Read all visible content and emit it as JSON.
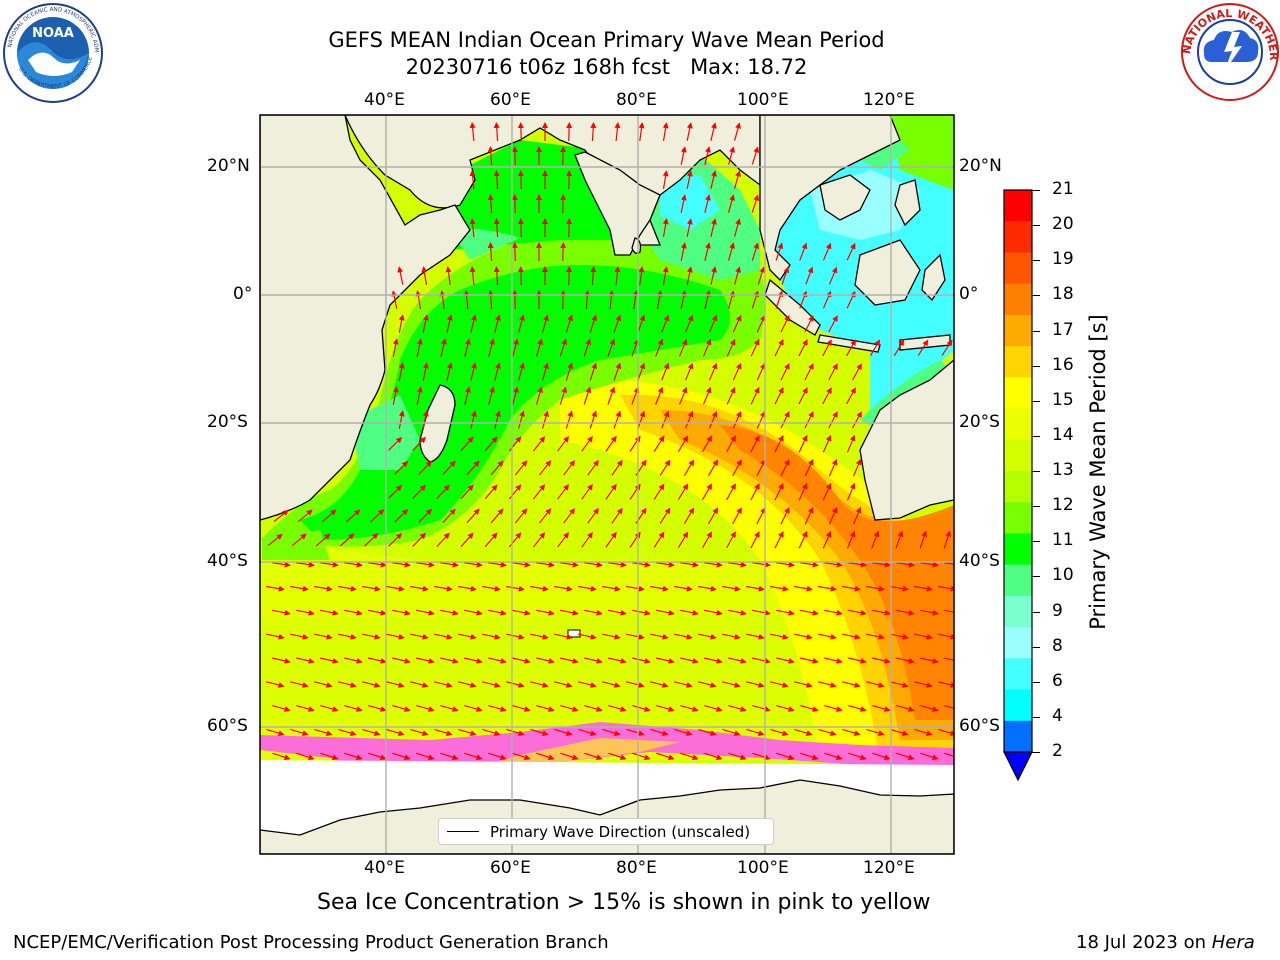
{
  "title": {
    "line1": "GEFS MEAN Indian Ocean Primary Wave Mean Period",
    "line2": "20230716 t06z 168h fcst   Max: 18.72"
  },
  "map": {
    "lon_ticks_top": [
      "40°E",
      "60°E",
      "80°E",
      "100°E",
      "120°E"
    ],
    "lon_ticks_bottom": [
      "40°E",
      "60°E",
      "80°E",
      "100°E",
      "120°E"
    ],
    "lat_ticks_left": [
      "20°N",
      "0°",
      "20°S",
      "40°S",
      "60°S"
    ],
    "lat_ticks_right": [
      "20°N",
      "0°",
      "20°S",
      "40°S",
      "60°S"
    ],
    "lon_range": [
      20,
      130
    ],
    "lat_range": [
      -75,
      28
    ],
    "grid": true,
    "land_color": "#efefdc",
    "arrow_color": "#ff0000",
    "no_data_color": "#ffffff"
  },
  "legend": {
    "label": "Primary Wave Direction (unscaled)",
    "location": "lower-center"
  },
  "colorbar": {
    "label": "Primary Wave Mean Period [s]",
    "ticks": [
      "21",
      "20",
      "19",
      "18",
      "17",
      "16",
      "15",
      "14",
      "13",
      "12",
      "11",
      "10",
      "9",
      "8",
      "6",
      "4",
      "2"
    ],
    "colors_top_to_bottom": [
      "#ff0000",
      "#ff2a00",
      "#ff5500",
      "#ff7f00",
      "#ffaa00",
      "#ffd400",
      "#ffff00",
      "#ecff00",
      "#d4ff00",
      "#b4ff00",
      "#78ff00",
      "#00ff00",
      "#4fff82",
      "#7affd0",
      "#99ffff",
      "#44ffff",
      "#00ffff",
      "#0070ff"
    ],
    "extend_color": "#0000ff"
  },
  "caption": "Sea Ice Concentration > 15% is shown in pink to yellow",
  "footer": {
    "left": "NCEP/EMC/Verification Post Processing Product Generation Branch",
    "right_prefix": "18 Jul 2023 on ",
    "right_machine": "Hera"
  },
  "logos": {
    "left": "NOAA",
    "right": "NATIONAL WEATHER SERVICE"
  }
}
